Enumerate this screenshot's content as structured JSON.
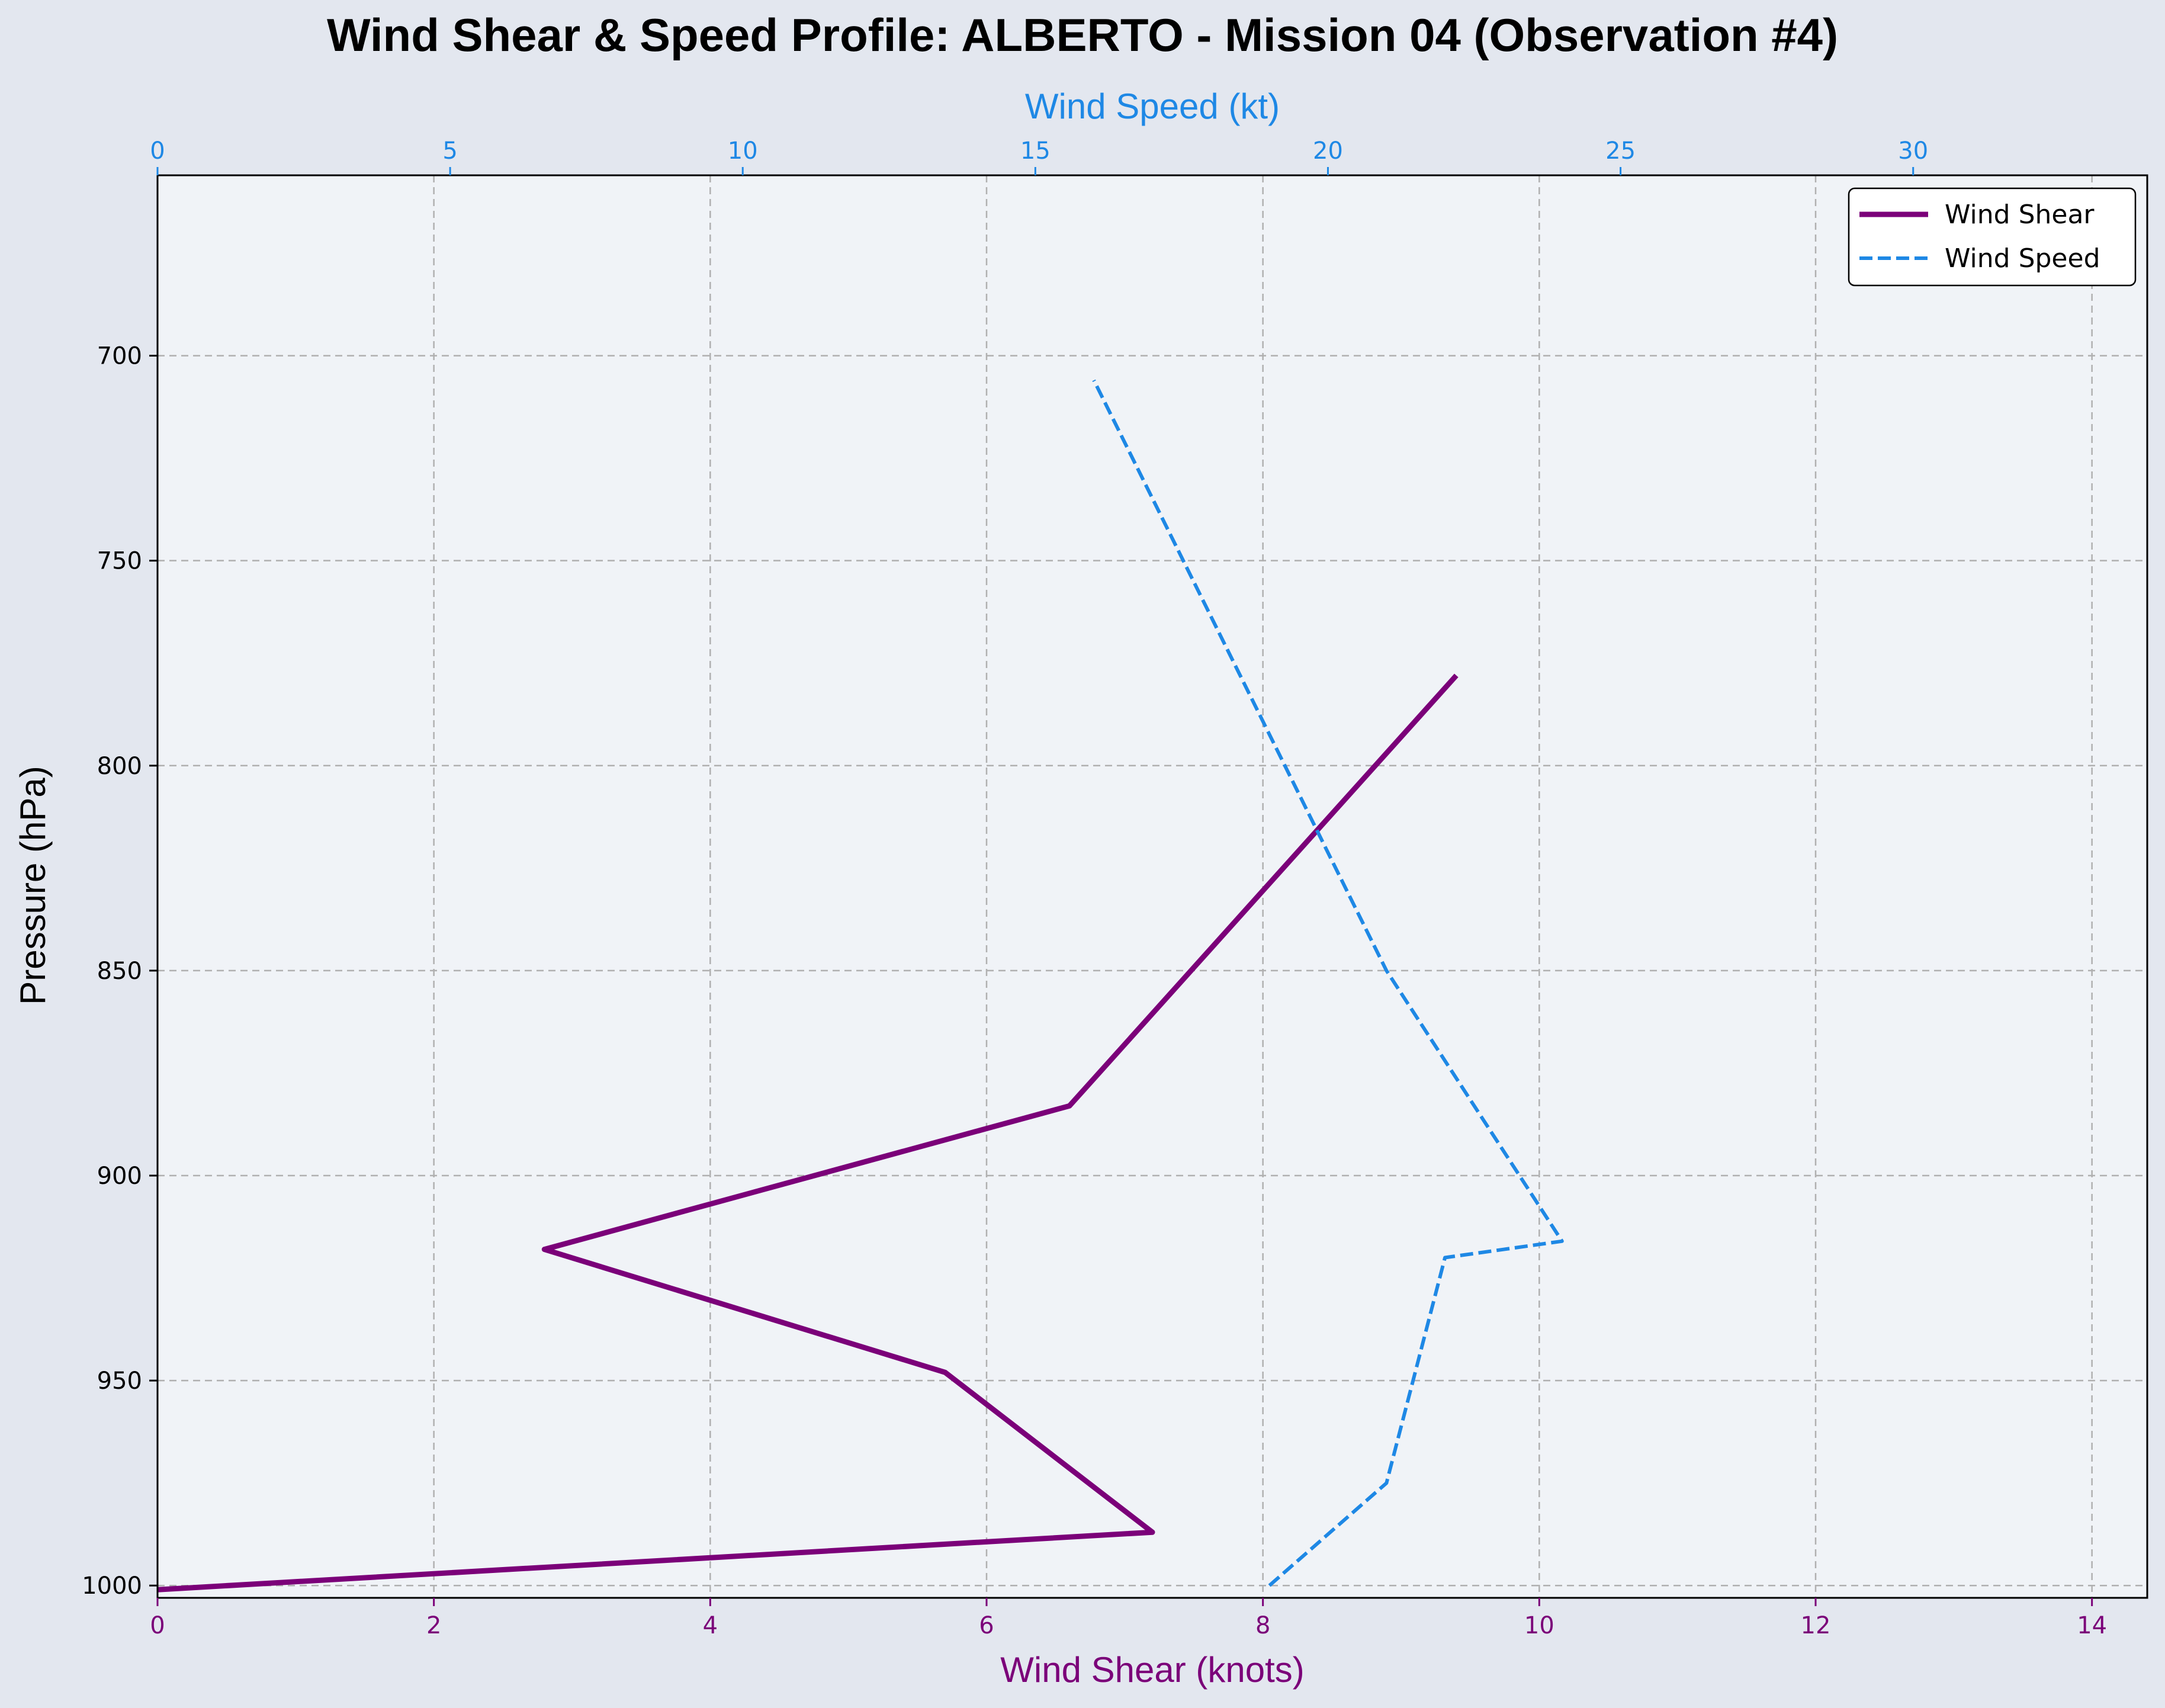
{
  "chart_data": {
    "type": "line",
    "title": "Wind Shear & Speed Profile: ALBERTO - Mission 04 (Observation #4)",
    "ylabel": "Pressure (hPa)",
    "xlabel_bottom": "Wind Shear (knots)",
    "xlabel_top": "Wind Speed (kt)",
    "ylim": [
      1003,
      656
    ],
    "y_inverted": true,
    "yticks": [
      700,
      750,
      800,
      850,
      900,
      950,
      1000
    ],
    "xlim_bottom": [
      0,
      14.4
    ],
    "xticks_bottom": [
      0,
      2,
      4,
      6,
      8,
      10,
      12,
      14
    ],
    "xlim_top": [
      0,
      34.0
    ],
    "xticks_top": [
      0,
      5,
      10,
      15,
      20,
      25,
      30
    ],
    "grid": true,
    "legend_position": "top-right",
    "colors": {
      "shear": "#7b0079",
      "speed": "#1e88e5",
      "plot_bg": "#f0f3f7",
      "figure_bg": "#e3e7ef",
      "grid": "#b0b0b0"
    },
    "series": [
      {
        "name": "Wind Shear",
        "axis": "bottom",
        "style": "solid",
        "points": [
          {
            "x": 0.0,
            "y": 1001
          },
          {
            "x": 7.2,
            "y": 987
          },
          {
            "x": 5.7,
            "y": 948
          },
          {
            "x": 2.8,
            "y": 918
          },
          {
            "x": 6.6,
            "y": 883
          },
          {
            "x": 9.4,
            "y": 778
          }
        ]
      },
      {
        "name": "Wind Speed",
        "axis": "top",
        "style": "dashed",
        "points": [
          {
            "x": 19.0,
            "y": 1000
          },
          {
            "x": 21.0,
            "y": 975
          },
          {
            "x": 22.0,
            "y": 920
          },
          {
            "x": 24.0,
            "y": 916
          },
          {
            "x": 21.0,
            "y": 850
          },
          {
            "x": 16.0,
            "y": 706
          }
        ]
      }
    ]
  }
}
